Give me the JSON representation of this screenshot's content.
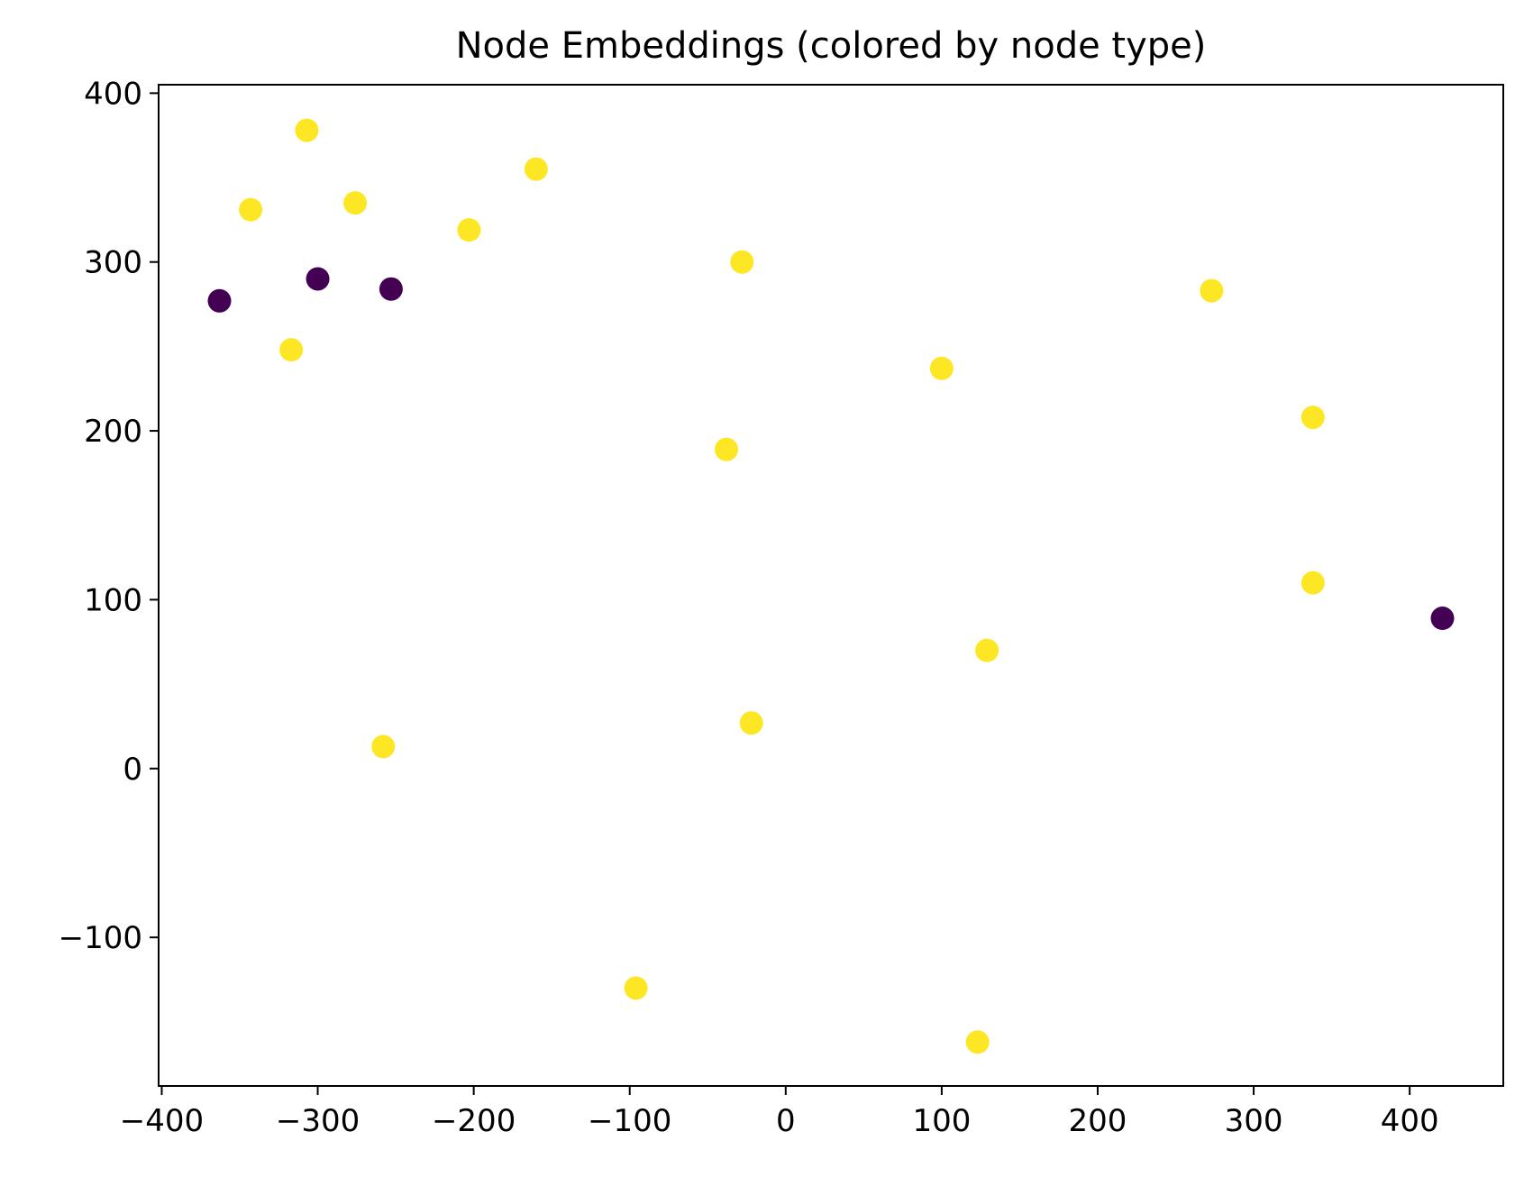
{
  "chart_data": {
    "type": "scatter",
    "title": "Node Embeddings (colored by node type)",
    "xlabel": "",
    "ylabel": "",
    "xlim": [
      -402,
      460
    ],
    "ylim": [
      -188,
      405
    ],
    "xticks": [
      -400,
      -300,
      -200,
      -100,
      0,
      100,
      200,
      300,
      400
    ],
    "yticks": [
      -100,
      0,
      100,
      200,
      300,
      400
    ],
    "grid": false,
    "legend": false,
    "colors": {
      "type_0": "#440154",
      "type_1": "#fde725"
    },
    "points": [
      {
        "x": -363,
        "y": 277,
        "type": 0
      },
      {
        "x": -300,
        "y": 290,
        "type": 0
      },
      {
        "x": -253,
        "y": 284,
        "type": 0
      },
      {
        "x": 421,
        "y": 89,
        "type": 0
      },
      {
        "x": -307,
        "y": 378,
        "type": 1
      },
      {
        "x": -343,
        "y": 331,
        "type": 1
      },
      {
        "x": -276,
        "y": 335,
        "type": 1
      },
      {
        "x": -203,
        "y": 319,
        "type": 1
      },
      {
        "x": -160,
        "y": 355,
        "type": 1
      },
      {
        "x": -317,
        "y": 248,
        "type": 1
      },
      {
        "x": -28,
        "y": 300,
        "type": 1
      },
      {
        "x": 100,
        "y": 237,
        "type": 1
      },
      {
        "x": 273,
        "y": 283,
        "type": 1
      },
      {
        "x": 338,
        "y": 208,
        "type": 1
      },
      {
        "x": -38,
        "y": 189,
        "type": 1
      },
      {
        "x": 338,
        "y": 110,
        "type": 1
      },
      {
        "x": 129,
        "y": 70,
        "type": 1
      },
      {
        "x": -22,
        "y": 27,
        "type": 1
      },
      {
        "x": -258,
        "y": 13,
        "type": 1
      },
      {
        "x": -96,
        "y": -130,
        "type": 1
      },
      {
        "x": 123,
        "y": -162,
        "type": 1
      }
    ]
  }
}
